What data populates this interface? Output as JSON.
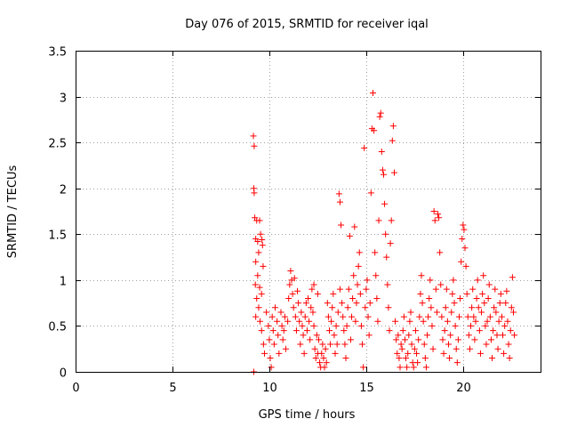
{
  "chart_data": {
    "type": "scatter",
    "title": "Day 076 of 2015, SRMTID for receiver iqal",
    "xlabel": "GPS time / hours",
    "ylabel": "SRMTID / TECUs",
    "xlim": [
      0,
      24
    ],
    "ylim": [
      0,
      3.5
    ],
    "x_ticks": [
      0,
      5,
      10,
      15,
      20
    ],
    "x_tick_labels": [
      "0",
      "5",
      "10",
      "15",
      "20"
    ],
    "y_ticks": [
      0,
      0.5,
      1,
      1.5,
      2,
      2.5,
      3,
      3.5
    ],
    "y_tick_labels": [
      "0",
      "0.5",
      "1",
      "1.5",
      "2",
      "2.5",
      "3",
      "3.5"
    ],
    "grid": true,
    "marker": "+",
    "series": [
      {
        "name": "SRMTID",
        "color": "#ff0000",
        "points": [
          [
            9.18,
            2.57
          ],
          [
            9.22,
            2.46
          ],
          [
            9.2,
            2.0
          ],
          [
            9.22,
            1.95
          ],
          [
            9.25,
            1.68
          ],
          [
            9.35,
            1.65
          ],
          [
            9.5,
            1.65
          ],
          [
            9.3,
            1.45
          ],
          [
            9.4,
            1.42
          ],
          [
            9.55,
            1.5
          ],
          [
            9.62,
            1.44
          ],
          [
            9.65,
            1.38
          ],
          [
            9.45,
            1.3
          ],
          [
            9.3,
            1.2
          ],
          [
            9.4,
            1.05
          ],
          [
            9.28,
            0.95
          ],
          [
            9.5,
            0.92
          ],
          [
            9.35,
            0.8
          ],
          [
            9.45,
            0.7
          ],
          [
            9.3,
            0.6
          ],
          [
            9.52,
            0.55
          ],
          [
            9.6,
            0.45
          ],
          [
            9.7,
            0.3
          ],
          [
            9.75,
            0.2
          ],
          [
            9.2,
            0.0
          ],
          [
            9.6,
            0.85
          ],
          [
            9.68,
            1.15
          ],
          [
            9.85,
            0.65
          ],
          [
            9.95,
            0.5
          ],
          [
            10.0,
            0.35
          ],
          [
            10.05,
            0.15
          ],
          [
            10.1,
            0.05
          ],
          [
            10.15,
            0.6
          ],
          [
            10.2,
            0.45
          ],
          [
            10.25,
            0.3
          ],
          [
            10.3,
            0.7
          ],
          [
            10.4,
            0.55
          ],
          [
            10.45,
            0.4
          ],
          [
            10.5,
            0.2
          ],
          [
            10.6,
            0.65
          ],
          [
            10.65,
            0.5
          ],
          [
            10.7,
            0.35
          ],
          [
            10.75,
            0.45
          ],
          [
            10.8,
            0.6
          ],
          [
            10.85,
            0.25
          ],
          [
            10.95,
            0.55
          ],
          [
            11.0,
            0.8
          ],
          [
            11.05,
            0.95
          ],
          [
            11.1,
            1.1
          ],
          [
            11.15,
            1.0
          ],
          [
            11.2,
            0.85
          ],
          [
            11.25,
            0.7
          ],
          [
            11.3,
            1.02
          ],
          [
            11.35,
            0.6
          ],
          [
            11.4,
            0.45
          ],
          [
            11.45,
            0.88
          ],
          [
            11.5,
            0.75
          ],
          [
            11.55,
            0.55
          ],
          [
            11.6,
            0.3
          ],
          [
            11.65,
            0.65
          ],
          [
            11.7,
            0.5
          ],
          [
            11.75,
            0.4
          ],
          [
            11.8,
            0.2
          ],
          [
            11.85,
            0.6
          ],
          [
            11.9,
            0.75
          ],
          [
            11.95,
            0.45
          ],
          [
            12.0,
            0.8
          ],
          [
            12.05,
            0.55
          ],
          [
            12.1,
            0.35
          ],
          [
            12.15,
            0.7
          ],
          [
            12.2,
            0.9
          ],
          [
            12.25,
            0.65
          ],
          [
            12.3,
            0.5
          ],
          [
            12.35,
            0.25
          ],
          [
            12.4,
            0.15
          ],
          [
            12.45,
            0.4
          ],
          [
            12.5,
            0.2
          ],
          [
            12.55,
            0.35
          ],
          [
            12.6,
            0.1
          ],
          [
            12.65,
            0.05
          ],
          [
            12.7,
            0.2
          ],
          [
            12.75,
            0.3
          ],
          [
            12.8,
            0.15
          ],
          [
            12.85,
            0.05
          ],
          [
            12.9,
            0.25
          ],
          [
            12.95,
            0.1
          ],
          [
            12.5,
            0.85
          ],
          [
            12.3,
            0.95
          ],
          [
            13.0,
            0.75
          ],
          [
            13.05,
            0.6
          ],
          [
            13.1,
            0.45
          ],
          [
            13.15,
            0.3
          ],
          [
            13.2,
            0.55
          ],
          [
            13.25,
            0.7
          ],
          [
            13.3,
            0.85
          ],
          [
            13.35,
            0.4
          ],
          [
            13.4,
            0.2
          ],
          [
            13.45,
            0.5
          ],
          [
            13.5,
            0.3
          ],
          [
            13.55,
            0.65
          ],
          [
            13.6,
            1.94
          ],
          [
            13.65,
            1.85
          ],
          [
            13.7,
            1.6
          ],
          [
            13.65,
            0.9
          ],
          [
            13.75,
            0.75
          ],
          [
            13.8,
            0.6
          ],
          [
            13.85,
            0.45
          ],
          [
            13.9,
            0.3
          ],
          [
            13.95,
            0.15
          ],
          [
            14.0,
            0.5
          ],
          [
            14.05,
            0.7
          ],
          [
            14.1,
            0.9
          ],
          [
            14.15,
            1.48
          ],
          [
            14.2,
            0.35
          ],
          [
            14.25,
            0.6
          ],
          [
            14.3,
            0.8
          ],
          [
            14.35,
            1.05
          ],
          [
            14.4,
            1.58
          ],
          [
            14.45,
            0.55
          ],
          [
            14.5,
            0.75
          ],
          [
            14.55,
            0.95
          ],
          [
            14.6,
            1.15
          ],
          [
            14.65,
            1.3
          ],
          [
            14.7,
            0.85
          ],
          [
            14.75,
            0.5
          ],
          [
            14.8,
            0.3
          ],
          [
            14.85,
            0.05
          ],
          [
            14.9,
            2.44
          ],
          [
            14.95,
            0.7
          ],
          [
            15.0,
            0.9
          ],
          [
            15.05,
            1.0
          ],
          [
            15.1,
            0.6
          ],
          [
            15.15,
            0.4
          ],
          [
            15.2,
            0.75
          ],
          [
            15.25,
            1.95
          ],
          [
            15.3,
            2.65
          ],
          [
            15.35,
            3.04
          ],
          [
            15.4,
            2.63
          ],
          [
            15.45,
            1.3
          ],
          [
            15.5,
            1.05
          ],
          [
            15.55,
            0.8
          ],
          [
            15.6,
            0.55
          ],
          [
            15.65,
            1.65
          ],
          [
            15.7,
            2.78
          ],
          [
            15.75,
            2.82
          ],
          [
            15.8,
            2.4
          ],
          [
            15.85,
            2.2
          ],
          [
            15.9,
            2.15
          ],
          [
            15.95,
            1.83
          ],
          [
            16.0,
            1.5
          ],
          [
            16.05,
            1.25
          ],
          [
            16.1,
            0.95
          ],
          [
            16.15,
            0.7
          ],
          [
            16.2,
            0.45
          ],
          [
            16.25,
            1.4
          ],
          [
            16.3,
            1.65
          ],
          [
            16.35,
            2.52
          ],
          [
            16.4,
            2.68
          ],
          [
            16.45,
            2.17
          ],
          [
            16.5,
            0.55
          ],
          [
            16.55,
            0.35
          ],
          [
            16.6,
            0.2
          ],
          [
            16.65,
            0.4
          ],
          [
            16.7,
            0.15
          ],
          [
            16.75,
            0.05
          ],
          [
            16.8,
            0.3
          ],
          [
            16.85,
            0.25
          ],
          [
            16.9,
            0.45
          ],
          [
            16.95,
            0.6
          ],
          [
            17.0,
            0.35
          ],
          [
            17.05,
            0.15
          ],
          [
            17.1,
            0.05
          ],
          [
            17.15,
            0.2
          ],
          [
            17.2,
            0.4
          ],
          [
            17.25,
            0.55
          ],
          [
            17.3,
            0.65
          ],
          [
            17.35,
            0.3
          ],
          [
            17.4,
            0.1
          ],
          [
            17.45,
            0.05
          ],
          [
            17.5,
            0.25
          ],
          [
            17.55,
            0.45
          ],
          [
            17.6,
            0.2
          ],
          [
            17.65,
            0.1
          ],
          [
            17.7,
            0.35
          ],
          [
            17.75,
            0.6
          ],
          [
            17.8,
            0.85
          ],
          [
            17.85,
            1.05
          ],
          [
            17.9,
            0.75
          ],
          [
            17.95,
            0.55
          ],
          [
            18.0,
            0.3
          ],
          [
            18.05,
            0.15
          ],
          [
            18.1,
            0.05
          ],
          [
            18.15,
            0.4
          ],
          [
            18.2,
            0.6
          ],
          [
            18.25,
            0.8
          ],
          [
            18.3,
            1.0
          ],
          [
            18.35,
            0.7
          ],
          [
            18.4,
            0.5
          ],
          [
            18.45,
            0.25
          ],
          [
            18.5,
            1.75
          ],
          [
            18.55,
            1.65
          ],
          [
            18.6,
            0.9
          ],
          [
            18.65,
            0.65
          ],
          [
            18.7,
            1.72
          ],
          [
            18.75,
            1.68
          ],
          [
            18.8,
            1.3
          ],
          [
            18.85,
            0.95
          ],
          [
            18.9,
            0.6
          ],
          [
            18.95,
            0.35
          ],
          [
            19.0,
            0.2
          ],
          [
            19.05,
            0.45
          ],
          [
            19.1,
            0.7
          ],
          [
            19.15,
            0.9
          ],
          [
            19.2,
            0.55
          ],
          [
            19.25,
            0.3
          ],
          [
            19.3,
            0.15
          ],
          [
            19.35,
            0.4
          ],
          [
            19.4,
            0.65
          ],
          [
            19.45,
            0.85
          ],
          [
            19.5,
            1.0
          ],
          [
            19.55,
            0.75
          ],
          [
            19.6,
            0.5
          ],
          [
            19.65,
            0.25
          ],
          [
            19.7,
            0.1
          ],
          [
            19.75,
            0.35
          ],
          [
            19.8,
            0.6
          ],
          [
            19.85,
            0.8
          ],
          [
            19.9,
            1.2
          ],
          [
            19.95,
            1.45
          ],
          [
            20.0,
            1.6
          ],
          [
            20.05,
            1.55
          ],
          [
            20.1,
            1.35
          ],
          [
            20.15,
            1.15
          ],
          [
            20.2,
            0.85
          ],
          [
            20.25,
            0.6
          ],
          [
            20.3,
            0.4
          ],
          [
            20.35,
            0.25
          ],
          [
            20.4,
            0.5
          ],
          [
            20.45,
            0.7
          ],
          [
            20.5,
            0.9
          ],
          [
            20.55,
            0.6
          ],
          [
            20.6,
            0.35
          ],
          [
            20.65,
            0.55
          ],
          [
            20.7,
            0.8
          ],
          [
            20.75,
            1.0
          ],
          [
            20.8,
            0.7
          ],
          [
            20.85,
            0.45
          ],
          [
            20.9,
            0.2
          ],
          [
            20.95,
            0.65
          ],
          [
            21.0,
            0.85
          ],
          [
            21.05,
            1.05
          ],
          [
            21.1,
            0.75
          ],
          [
            21.15,
            0.5
          ],
          [
            21.2,
            0.3
          ],
          [
            21.25,
            0.55
          ],
          [
            21.3,
            0.8
          ],
          [
            21.35,
            0.95
          ],
          [
            21.4,
            0.6
          ],
          [
            21.45,
            0.35
          ],
          [
            21.5,
            0.15
          ],
          [
            21.55,
            0.45
          ],
          [
            21.6,
            0.7
          ],
          [
            21.65,
            0.9
          ],
          [
            21.7,
            0.65
          ],
          [
            21.75,
            0.4
          ],
          [
            21.8,
            0.25
          ],
          [
            21.85,
            0.55
          ],
          [
            21.9,
            0.75
          ],
          [
            21.95,
            0.85
          ],
          [
            22.0,
            0.6
          ],
          [
            22.05,
            0.4
          ],
          [
            22.1,
            0.2
          ],
          [
            22.15,
            0.5
          ],
          [
            22.2,
            0.75
          ],
          [
            22.25,
            0.88
          ],
          [
            22.3,
            0.55
          ],
          [
            22.35,
            0.3
          ],
          [
            22.4,
            0.15
          ],
          [
            22.45,
            0.45
          ],
          [
            22.5,
            0.7
          ],
          [
            22.55,
            1.03
          ],
          [
            22.6,
            0.65
          ],
          [
            22.65,
            0.4
          ]
        ]
      }
    ]
  }
}
